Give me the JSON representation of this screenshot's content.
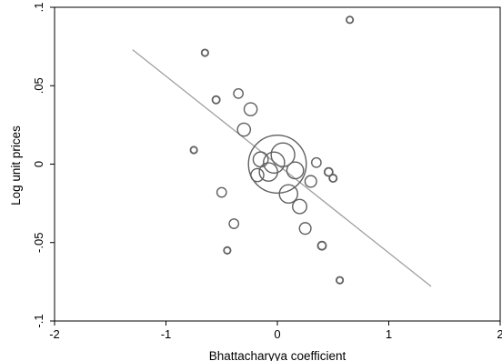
{
  "chart_data": {
    "type": "scatter",
    "title": "",
    "xlabel": "Bhattacharyya coefficient",
    "ylabel": "Log unit prices",
    "xlim": [
      -2,
      2
    ],
    "ylim": [
      -0.1,
      0.1
    ],
    "x_ticks": [
      -2,
      -1,
      0,
      1,
      2
    ],
    "x_tick_labels": [
      "-2",
      "-1",
      "0",
      "1",
      "2"
    ],
    "y_ticks": [
      -0.1,
      -0.05,
      0,
      0.05,
      0.1
    ],
    "y_tick_labels": [
      "-.1",
      "-.05",
      "0",
      ".05",
      ".1"
    ],
    "grid": false,
    "points": [
      {
        "x": 0.0,
        "y": 0.0,
        "weight": 30
      },
      {
        "x": 0.05,
        "y": 0.006,
        "weight": 5
      },
      {
        "x": -0.03,
        "y": 0.001,
        "weight": 4
      },
      {
        "x": -0.08,
        "y": -0.005,
        "weight": 3
      },
      {
        "x": -0.15,
        "y": 0.003,
        "weight": 2
      },
      {
        "x": -0.18,
        "y": -0.007,
        "weight": 1.5
      },
      {
        "x": 0.1,
        "y": -0.019,
        "weight": 3
      },
      {
        "x": 0.16,
        "y": -0.004,
        "weight": 2.5
      },
      {
        "x": 0.2,
        "y": -0.027,
        "weight": 1.8
      },
      {
        "x": 0.3,
        "y": -0.011,
        "weight": 1.2
      },
      {
        "x": 0.25,
        "y": -0.041,
        "weight": 1.2
      },
      {
        "x": 0.35,
        "y": 0.001,
        "weight": 0.8
      },
      {
        "x": 0.46,
        "y": -0.005,
        "weight": 0.6
      },
      {
        "x": 0.5,
        "y": -0.009,
        "weight": 0.5
      },
      {
        "x": -0.3,
        "y": 0.022,
        "weight": 1.5
      },
      {
        "x": -0.24,
        "y": 0.035,
        "weight": 1.5
      },
      {
        "x": -0.35,
        "y": 0.045,
        "weight": 0.8
      },
      {
        "x": -0.55,
        "y": 0.041,
        "weight": 0.5
      },
      {
        "x": -0.65,
        "y": 0.071,
        "weight": 0.4
      },
      {
        "x": -0.75,
        "y": 0.009,
        "weight": 0.4
      },
      {
        "x": -0.5,
        "y": -0.018,
        "weight": 0.8
      },
      {
        "x": -0.39,
        "y": -0.038,
        "weight": 0.8
      },
      {
        "x": -0.45,
        "y": -0.055,
        "weight": 0.4
      },
      {
        "x": 0.4,
        "y": -0.052,
        "weight": 0.6
      },
      {
        "x": 0.56,
        "y": -0.074,
        "weight": 0.4
      },
      {
        "x": 0.65,
        "y": 0.092,
        "weight": 0.4
      }
    ],
    "fit_line": {
      "x": [
        -1.3,
        1.38
      ],
      "y": [
        0.073,
        -0.078
      ]
    },
    "colors": {
      "markers": "#606060",
      "fit_line": "#a0a0a0",
      "axes": "#000000",
      "background": "#ffffff"
    }
  }
}
